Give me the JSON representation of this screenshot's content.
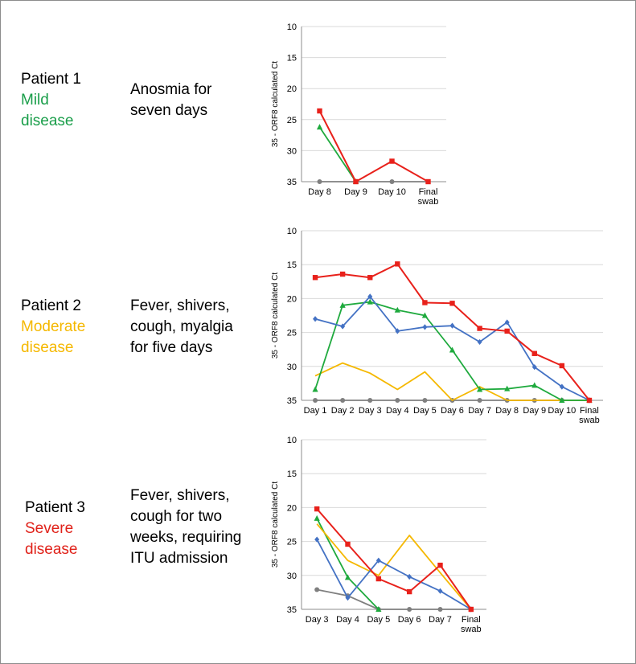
{
  "patients": [
    {
      "name": "Patient 1",
      "severity_line1": "Mild",
      "severity_line2": "disease",
      "severity_color": "#1a9e4a",
      "symptoms": [
        "Anosmia for",
        "seven days"
      ]
    },
    {
      "name": "Patient 2",
      "severity_line1": "Moderate",
      "severity_line2": "disease",
      "severity_color": "#f5b800",
      "symptoms": [
        "Fever, shivers,",
        "cough, myalgia",
        "for five days"
      ]
    },
    {
      "name": "Patient 3",
      "severity_line1": "Severe",
      "severity_line2": "disease",
      "severity_color": "#e0221a",
      "symptoms": [
        "Fever, shivers,",
        "cough for two",
        "weeks, requiring",
        "ITU admission"
      ]
    }
  ],
  "series_colors": {
    "red": "#e8211b",
    "green": "#1faa3e",
    "blue": "#4472c4",
    "yellow": "#f5b800",
    "grey": "#7f7f7f"
  },
  "chart_data": [
    {
      "type": "line",
      "ylabel": "35 - ORF8 calculated Ct",
      "ylim": [
        35,
        10
      ],
      "yticks": [
        10,
        15,
        20,
        25,
        30,
        35
      ],
      "categories": [
        "Day 8",
        "Day 9",
        "Day 10",
        "Final swab"
      ],
      "series": [
        {
          "color": "grey",
          "marker": "circle",
          "values": [
            35,
            35,
            35,
            35
          ]
        },
        {
          "color": "green",
          "marker": "triangle",
          "values": [
            26.2,
            35,
            null,
            null
          ]
        },
        {
          "color": "red",
          "marker": "square",
          "values": [
            23.6,
            35,
            31.7,
            35
          ]
        }
      ]
    },
    {
      "type": "line",
      "ylabel": "35 - ORF8 calculated Ct",
      "ylim": [
        35,
        10
      ],
      "yticks": [
        10,
        15,
        20,
        25,
        30,
        35
      ],
      "categories": [
        "Day 1",
        "Day 2",
        "Day 3",
        "Day 4",
        "Day 5",
        "Day 6",
        "Day 7",
        "Day 8",
        "Day 9",
        "Day 10",
        "Final swab"
      ],
      "series": [
        {
          "color": "grey",
          "marker": "circle",
          "values": [
            35,
            35,
            35,
            35,
            35,
            35,
            35,
            35,
            35,
            35,
            35
          ]
        },
        {
          "color": "yellow",
          "marker": "none",
          "values": [
            31.4,
            29.5,
            31.0,
            33.4,
            30.8,
            35,
            33.0,
            35,
            35,
            35,
            35
          ]
        },
        {
          "color": "green",
          "marker": "triangle",
          "values": [
            33.4,
            21.0,
            20.5,
            21.7,
            22.5,
            27.6,
            33.4,
            33.3,
            32.8,
            35,
            35
          ]
        },
        {
          "color": "blue",
          "marker": "diamond",
          "values": [
            23.0,
            24.1,
            19.7,
            24.8,
            24.2,
            24.0,
            26.4,
            23.5,
            30.1,
            33.0,
            35
          ]
        },
        {
          "color": "red",
          "marker": "square",
          "values": [
            16.9,
            16.4,
            16.9,
            14.9,
            20.6,
            20.7,
            24.4,
            24.8,
            28.1,
            29.9,
            35
          ]
        }
      ]
    },
    {
      "type": "line",
      "ylabel": "35 - ORF8 calculated Ct",
      "ylim": [
        35,
        10
      ],
      "yticks": [
        10,
        15,
        20,
        25,
        30,
        35
      ],
      "categories": [
        "Day 3",
        "Day 4",
        "Day 5",
        "Day 6",
        "Day 7",
        "Final swab"
      ],
      "series": [
        {
          "color": "grey",
          "marker": "circle",
          "values": [
            32.1,
            33.0,
            35,
            35,
            35,
            35
          ]
        },
        {
          "color": "green",
          "marker": "triangle",
          "values": [
            21.6,
            30.3,
            35,
            null,
            null,
            null
          ]
        },
        {
          "color": "yellow",
          "marker": "none",
          "values": [
            22.4,
            27.8,
            30.0,
            24.1,
            29.6,
            35
          ]
        },
        {
          "color": "blue",
          "marker": "diamond",
          "values": [
            24.7,
            33.3,
            27.8,
            30.2,
            32.3,
            35
          ]
        },
        {
          "color": "red",
          "marker": "square",
          "values": [
            20.2,
            25.4,
            30.5,
            32.4,
            28.5,
            35
          ]
        }
      ]
    }
  ]
}
